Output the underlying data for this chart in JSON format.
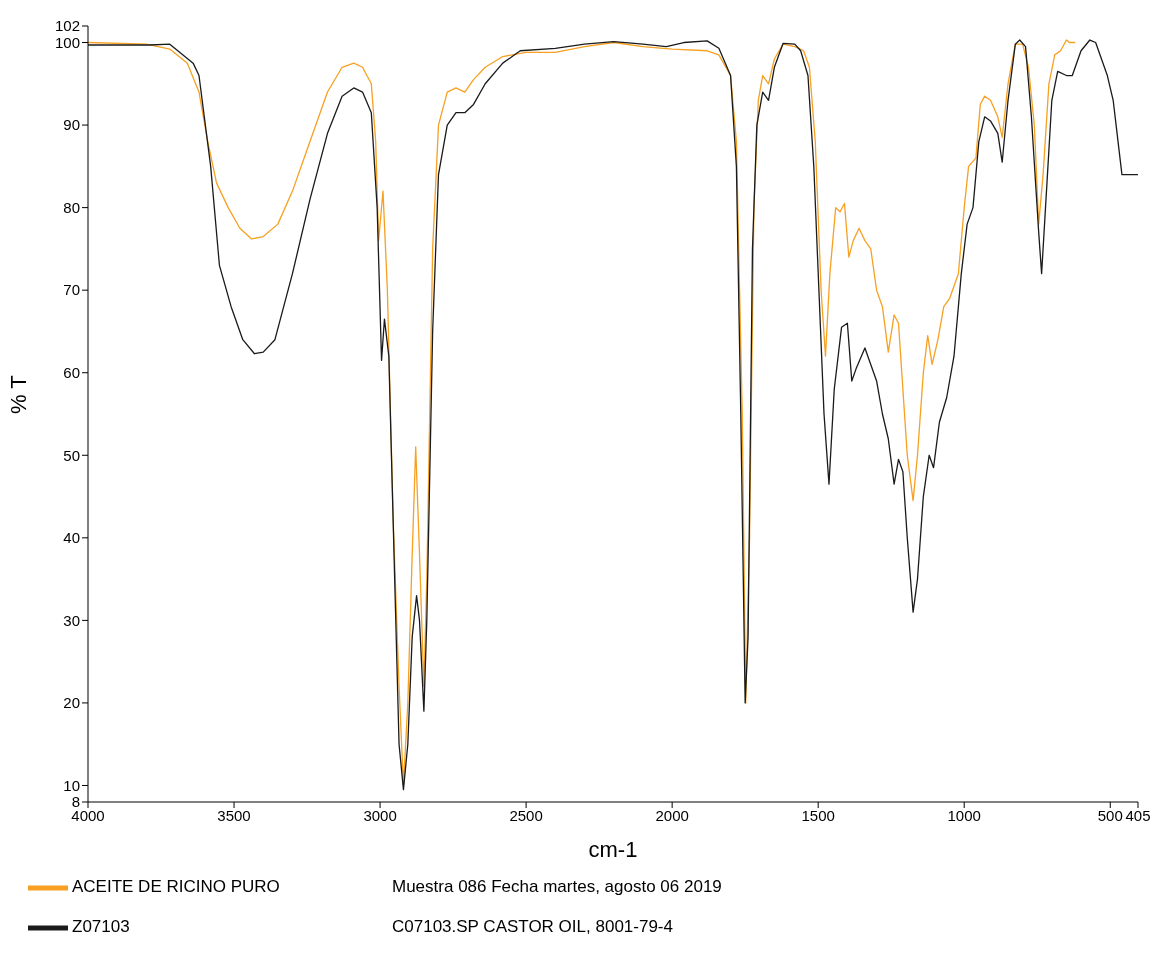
{
  "chart_data": {
    "type": "line",
    "xlabel": "cm-1",
    "ylabel": "% T",
    "xlim": [
      4000,
      405
    ],
    "xticks": [
      4000,
      3500,
      3000,
      2500,
      2000,
      1500,
      1000,
      500,
      405
    ],
    "ylim": [
      8,
      102
    ],
    "yticks": [
      8,
      10,
      20,
      30,
      40,
      50,
      60,
      70,
      80,
      90,
      100,
      102
    ],
    "legend": "bottom left",
    "marker": "none",
    "line_style": "solid",
    "annotations": [
      "Muestra 086 Fecha martes, agosto 06 2019",
      "C07103.SP CASTOR OIL, 8001-79-4"
    ],
    "series": [
      {
        "name": "ACEITE DE RICINO PURO",
        "color": "#f7a021",
        "x": [
          4000,
          3800,
          3720,
          3660,
          3620,
          3590,
          3560,
          3520,
          3480,
          3440,
          3400,
          3350,
          3300,
          3240,
          3180,
          3130,
          3090,
          3060,
          3030,
          3015,
          3005,
          2990,
          2975,
          2955,
          2935,
          2920,
          2905,
          2890,
          2878,
          2865,
          2850,
          2840,
          2820,
          2800,
          2770,
          2740,
          2710,
          2680,
          2640,
          2580,
          2500,
          2400,
          2300,
          2200,
          2100,
          2000,
          1880,
          1840,
          1800,
          1780,
          1760,
          1748,
          1735,
          1720,
          1705,
          1690,
          1670,
          1650,
          1620,
          1580,
          1550,
          1530,
          1510,
          1490,
          1475,
          1460,
          1440,
          1425,
          1410,
          1395,
          1380,
          1360,
          1340,
          1320,
          1300,
          1280,
          1260,
          1240,
          1225,
          1210,
          1195,
          1175,
          1160,
          1140,
          1125,
          1110,
          1090,
          1070,
          1050,
          1020,
          1000,
          985,
          960,
          945,
          930,
          910,
          885,
          870,
          850,
          825,
          800,
          780,
          760,
          745,
          730,
          710,
          690,
          670,
          650,
          640,
          620
        ],
        "values": [
          100,
          99.8,
          99.2,
          97.5,
          94,
          88,
          83,
          80,
          77.5,
          76.2,
          76.5,
          78,
          82,
          88,
          94,
          97,
          97.5,
          97,
          95,
          88,
          76,
          82,
          70,
          42,
          22,
          10,
          20,
          38,
          51,
          38,
          22,
          35,
          75,
          90,
          94,
          94.5,
          94,
          95.5,
          97,
          98.3,
          98.8,
          98.8,
          99.5,
          100,
          99.5,
          99.2,
          99,
          98.5,
          96,
          88,
          55,
          20,
          40,
          80,
          93,
          96,
          95,
          98,
          99.8,
          99.5,
          99,
          97,
          88,
          70,
          62,
          72,
          80,
          79.5,
          80.5,
          74,
          76,
          77.5,
          76,
          75,
          70,
          68,
          62.5,
          67,
          66,
          58,
          50,
          44.5,
          50,
          60,
          64.5,
          61,
          64,
          68,
          69,
          72,
          80,
          85,
          86,
          92.5,
          93.5,
          93,
          91,
          88.5,
          95,
          99.8,
          99.8,
          97,
          90,
          78,
          84,
          95,
          98.5,
          99,
          100.3,
          100,
          100
        ]
      },
      {
        "name": "Z07103",
        "color": "#1a1a1a",
        "x": [
          4000,
          3790,
          3720,
          3640,
          3620,
          3580,
          3550,
          3510,
          3470,
          3430,
          3400,
          3360,
          3300,
          3240,
          3180,
          3130,
          3090,
          3060,
          3030,
          3010,
          2995,
          2985,
          2970,
          2950,
          2935,
          2920,
          2905,
          2890,
          2875,
          2865,
          2850,
          2840,
          2820,
          2800,
          2770,
          2740,
          2710,
          2680,
          2640,
          2580,
          2520,
          2400,
          2300,
          2200,
          2100,
          2020,
          1960,
          1880,
          1840,
          1800,
          1780,
          1765,
          1750,
          1740,
          1725,
          1710,
          1690,
          1670,
          1650,
          1620,
          1580,
          1560,
          1535,
          1515,
          1480,
          1463,
          1445,
          1420,
          1400,
          1385,
          1370,
          1340,
          1320,
          1300,
          1280,
          1260,
          1240,
          1225,
          1210,
          1195,
          1175,
          1160,
          1140,
          1120,
          1105,
          1085,
          1060,
          1035,
          1010,
          990,
          970,
          950,
          930,
          910,
          885,
          870,
          850,
          825,
          810,
          790,
          770,
          745,
          735,
          720,
          700,
          680,
          650,
          630,
          600,
          570,
          550,
          530,
          510,
          490,
          470,
          460,
          405
        ],
        "values": [
          99.7,
          99.7,
          99.8,
          97.5,
          96,
          85,
          73,
          68,
          64,
          62.3,
          62.5,
          64,
          72,
          81,
          89,
          93.5,
          94.5,
          94,
          91.5,
          80,
          61.5,
          66.5,
          62,
          35,
          15,
          9.5,
          15,
          28,
          33,
          30,
          19,
          30,
          65,
          84,
          90,
          91.5,
          91.5,
          92.5,
          95,
          97.5,
          99,
          99.3,
          99.8,
          100.1,
          99.8,
          99.5,
          100,
          100.2,
          99.3,
          96,
          85,
          55,
          20,
          28,
          75,
          90,
          94,
          93,
          97,
          99.9,
          99.8,
          99,
          96,
          85,
          55,
          46.5,
          58,
          65.5,
          66,
          59,
          60.5,
          63,
          61,
          59,
          55,
          52,
          46.5,
          49.5,
          48,
          40,
          31,
          35,
          45,
          50,
          48.5,
          54,
          57,
          62,
          72,
          78,
          80,
          88,
          91,
          90.5,
          89,
          85.5,
          93,
          99.8,
          100.3,
          99.5,
          91,
          77,
          72,
          81,
          93,
          96.5,
          96,
          96,
          99,
          100.3,
          100,
          98,
          96,
          93,
          87,
          84,
          84
        ]
      }
    ]
  }
}
